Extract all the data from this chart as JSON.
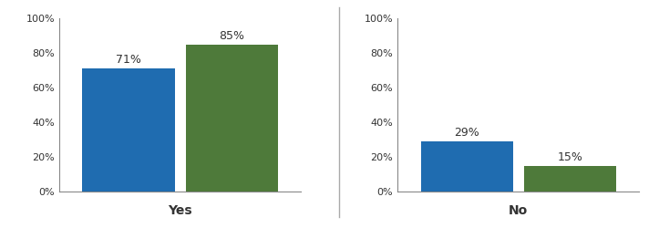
{
  "groups": [
    "Yes",
    "No"
  ],
  "jd_values": [
    71,
    29
  ],
  "llm_values": [
    85,
    15
  ],
  "jd_color": "#1F6CB0",
  "llm_color": "#4E7A3A",
  "bar_width": 0.42,
  "ylim": [
    0,
    100
  ],
  "yticks": [
    0,
    20,
    40,
    60,
    80,
    100
  ],
  "ytick_labels": [
    "0%",
    "20%",
    "40%",
    "60%",
    "80%",
    "100%"
  ],
  "tick_fontsize": 8,
  "annotation_fontsize": 9,
  "xlabel_fontsize": 10,
  "divider_color": "#aaaaaa",
  "spine_color": "#888888",
  "background_color": "#ffffff",
  "text_color": "#333333"
}
